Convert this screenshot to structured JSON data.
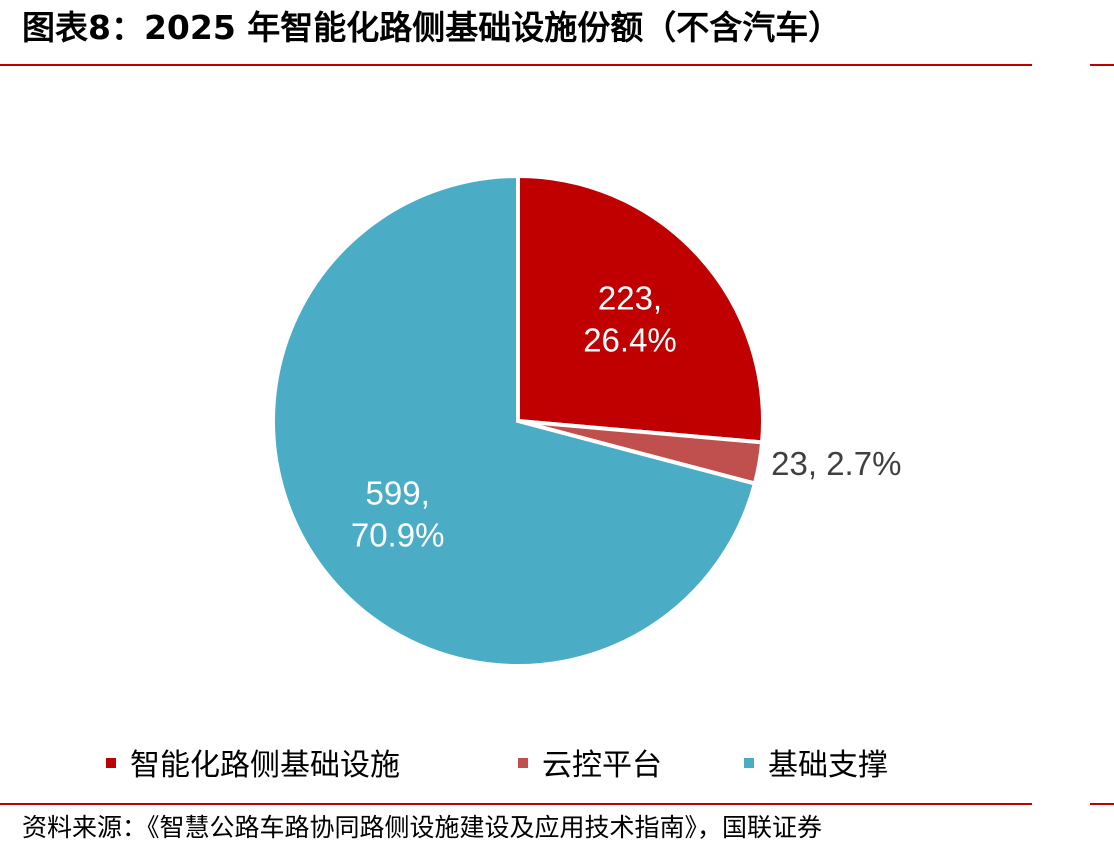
{
  "title": "图表8：2025 年智能化路侧基础设施份额（不含汽车）",
  "chart_data": {
    "type": "pie",
    "categories": [
      "智能化路侧基础设施",
      "云控平台",
      "基础支撑"
    ],
    "values": [
      223,
      23,
      599
    ],
    "percentages": [
      "26.4%",
      "2.7%",
      "70.9%"
    ],
    "data_labels": [
      [
        "223,",
        "26.4%"
      ],
      [
        "23, 2.7%"
      ],
      [
        "599,",
        "70.9%"
      ]
    ],
    "colors": [
      "#c00000",
      "#c0504d",
      "#4bacc6"
    ],
    "label_colors": [
      "#ffffff",
      "#404040",
      "#ffffff"
    ],
    "legend_position": "bottom"
  },
  "legend": {
    "items": [
      {
        "label": "智能化路侧基础设施",
        "color": "#c00000"
      },
      {
        "label": "云控平台",
        "color": "#c0504d"
      },
      {
        "label": "基础支撑",
        "color": "#4bacc6"
      }
    ]
  },
  "source_text": "资料来源：《智慧公路车路协同路侧设施建设及应用技术指南》，国联证券"
}
